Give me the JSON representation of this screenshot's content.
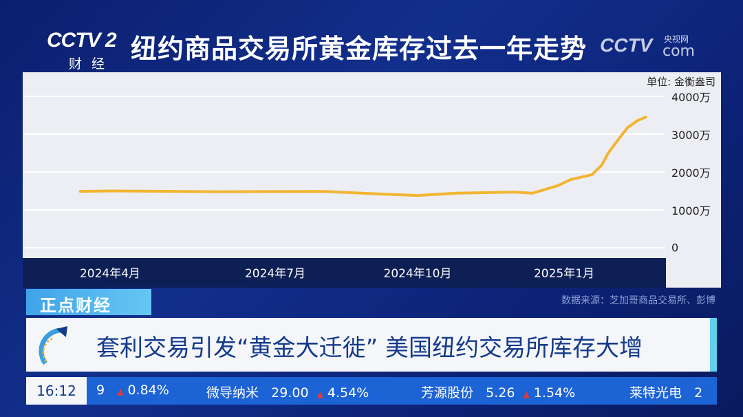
{
  "header": {
    "logo": "CCTV 2",
    "logo_sub": "财经",
    "title": "纽约商品交易所黄金库存过去一年走势",
    "watermark": "CCTV",
    "watermark_site": "央视网",
    "watermark_com": "com"
  },
  "chart_data": {
    "type": "line",
    "title": "纽约商品交易所黄金库存过去一年走势",
    "unit": "单位: 金衡盎司",
    "y_ticks": [
      "0",
      "1000万",
      "2000万",
      "3000万",
      "4000万"
    ],
    "ylim": [
      0,
      40000000
    ],
    "x_ticks": [
      "2024年4月",
      "2024年7月",
      "2024年10月",
      "2025年1月"
    ],
    "grid": true,
    "color": "#f2b531",
    "series": [
      {
        "points": [
          [
            "2024-02-24",
            14900000
          ],
          [
            "2024-04-01",
            15000000
          ],
          [
            "2024-06-01",
            14800000
          ],
          [
            "2024-08-01",
            14900000
          ],
          [
            "2024-09-01",
            14300000
          ],
          [
            "2024-10-01",
            13800000
          ],
          [
            "2024-10-25",
            14400000
          ],
          [
            "2024-12-01",
            14700000
          ],
          [
            "2024-12-12",
            14400000
          ],
          [
            "2024-12-28",
            16400000
          ],
          [
            "2025-01-05",
            18000000
          ],
          [
            "2025-01-18",
            19300000
          ],
          [
            "2025-01-24",
            21800000
          ],
          [
            "2025-01-28",
            25000000
          ],
          [
            "2025-02-03",
            28500000
          ],
          [
            "2025-02-09",
            31800000
          ],
          [
            "2025-02-15",
            33600000
          ],
          [
            "2025-02-20",
            34500000
          ]
        ]
      }
    ]
  },
  "section_tab": "正点财经",
  "source": "数据来源：芝加哥商品交易所、彭博",
  "headline": "套利交易引发“黄金大迁徙” 美国纽约交易所库存大增",
  "ticker": {
    "time": "16:12",
    "items": [
      {
        "name": "",
        "price": "9",
        "change": "0.84%"
      },
      {
        "name": "微导纳米",
        "price": "29.00",
        "change": "4.54%"
      },
      {
        "name": "芳源股份",
        "price": "5.26",
        "change": "1.54%"
      },
      {
        "name": "莱特光电",
        "price": "2",
        "change": ""
      }
    ]
  }
}
